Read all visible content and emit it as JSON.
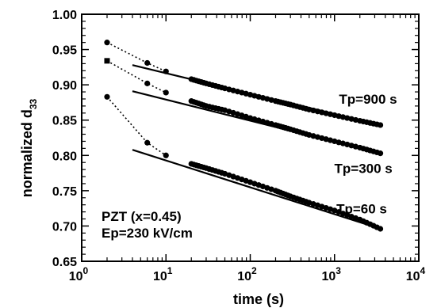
{
  "chart_data": {
    "type": "scatter",
    "xlabel": "time (s)",
    "ylabel": "normalized d",
    "ylabel_subscript": "33",
    "xscale": "log",
    "xlim": [
      1,
      10000
    ],
    "ylim": [
      0.65,
      1.0
    ],
    "x_ticks": [
      {
        "value": 1,
        "base": "10",
        "exp": "0"
      },
      {
        "value": 10,
        "base": "10",
        "exp": "1"
      },
      {
        "value": 100,
        "base": "10",
        "exp": "2"
      },
      {
        "value": 1000,
        "base": "10",
        "exp": "3"
      },
      {
        "value": 10000,
        "base": "10",
        "exp": "4"
      }
    ],
    "y_ticks": [
      "0.65",
      "0.70",
      "0.75",
      "0.80",
      "0.85",
      "0.90",
      "0.95",
      "1.00"
    ],
    "grid": false,
    "annotations": [
      "PZT (x=0.45)",
      "Ep=230 kV/cm"
    ],
    "series": [
      {
        "name": "Tp=900 s",
        "color": "#000000",
        "marker": "circle",
        "points": [
          [
            2,
            0.96
          ],
          [
            6,
            0.931
          ],
          [
            10,
            0.919
          ],
          [
            20,
            0.908
          ],
          [
            30,
            0.902
          ],
          [
            50,
            0.895
          ],
          [
            100,
            0.886
          ],
          [
            200,
            0.877
          ],
          [
            300,
            0.872
          ],
          [
            500,
            0.865
          ],
          [
            1000,
            0.857
          ],
          [
            2000,
            0.849
          ],
          [
            3500,
            0.843
          ]
        ],
        "fit_line": [
          [
            4,
            0.928
          ],
          [
            3500,
            0.843
          ]
        ]
      },
      {
        "name": "Tp=300 s",
        "color": "#000000",
        "marker": "square",
        "points": [
          [
            2,
            0.934
          ],
          [
            6,
            0.902
          ],
          [
            10,
            0.889
          ],
          [
            20,
            0.877
          ],
          [
            30,
            0.87
          ],
          [
            50,
            0.864
          ],
          [
            100,
            0.853
          ],
          [
            200,
            0.843
          ],
          [
            300,
            0.837
          ],
          [
            500,
            0.829
          ],
          [
            1000,
            0.82
          ],
          [
            2000,
            0.811
          ],
          [
            3500,
            0.803
          ]
        ],
        "fit_line": [
          [
            4,
            0.891
          ],
          [
            3500,
            0.803
          ]
        ]
      },
      {
        "name": "Tp=60 s",
        "color": "#000000",
        "marker": "circle",
        "points": [
          [
            2,
            0.883
          ],
          [
            6,
            0.818
          ],
          [
            10,
            0.8
          ],
          [
            20,
            0.788
          ],
          [
            30,
            0.782
          ],
          [
            50,
            0.774
          ],
          [
            100,
            0.762
          ],
          [
            200,
            0.75
          ],
          [
            300,
            0.742
          ],
          [
            500,
            0.733
          ],
          [
            1000,
            0.722
          ],
          [
            2000,
            0.709
          ],
          [
            3500,
            0.696
          ]
        ],
        "fit_line": [
          [
            4,
            0.808
          ],
          [
            3500,
            0.696
          ]
        ]
      }
    ],
    "series_label_positions": {
      "Tp=900 s": [
        2500,
        0.873
      ],
      "Tp=300 s": [
        2200,
        0.775
      ],
      "Tp=60 s": [
        2100,
        0.718
      ]
    }
  }
}
